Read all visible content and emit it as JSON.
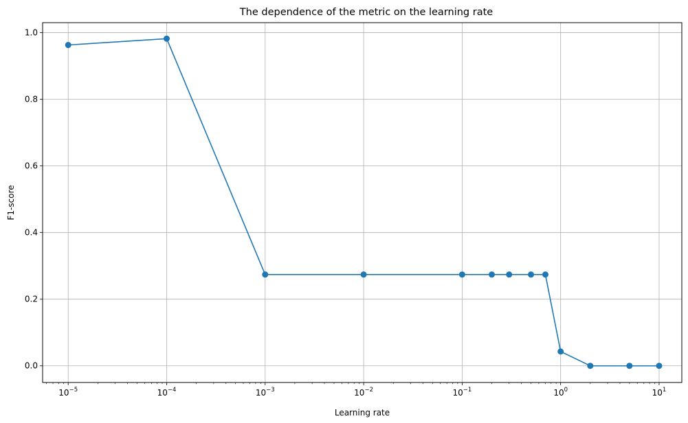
{
  "chart_data": {
    "type": "line",
    "title": "The dependence of the metric on the learning rate",
    "xlabel": "Learning rate",
    "ylabel": "F1-score",
    "xscale": "log",
    "xlim": [
      5.5e-06,
      17
    ],
    "ylim": [
      -0.05,
      1.03
    ],
    "grid": true,
    "color": "#1f77b4",
    "marker": "circle",
    "x_ticks": [
      {
        "value": 1e-05,
        "base": "10",
        "exp": "−5"
      },
      {
        "value": 0.0001,
        "base": "10",
        "exp": "−4"
      },
      {
        "value": 0.001,
        "base": "10",
        "exp": "−3"
      },
      {
        "value": 0.01,
        "base": "10",
        "exp": "−2"
      },
      {
        "value": 0.1,
        "base": "10",
        "exp": "−1"
      },
      {
        "value": 1,
        "base": "10",
        "exp": "0"
      },
      {
        "value": 10,
        "base": "10",
        "exp": "1"
      }
    ],
    "y_ticks": [
      {
        "value": 0.0,
        "label": "0.0"
      },
      {
        "value": 0.2,
        "label": "0.2"
      },
      {
        "value": 0.4,
        "label": "0.4"
      },
      {
        "value": 0.6,
        "label": "0.6"
      },
      {
        "value": 0.8,
        "label": "0.8"
      },
      {
        "value": 1.0,
        "label": "1.0"
      }
    ],
    "x": [
      1e-05,
      0.0001,
      0.001,
      0.01,
      0.1,
      0.2,
      0.3,
      0.5,
      0.7,
      1,
      2,
      5,
      10
    ],
    "y": [
      0.963,
      0.982,
      0.274,
      0.274,
      0.274,
      0.274,
      0.274,
      0.274,
      0.274,
      0.043,
      0.0,
      0.0,
      0.0
    ]
  }
}
